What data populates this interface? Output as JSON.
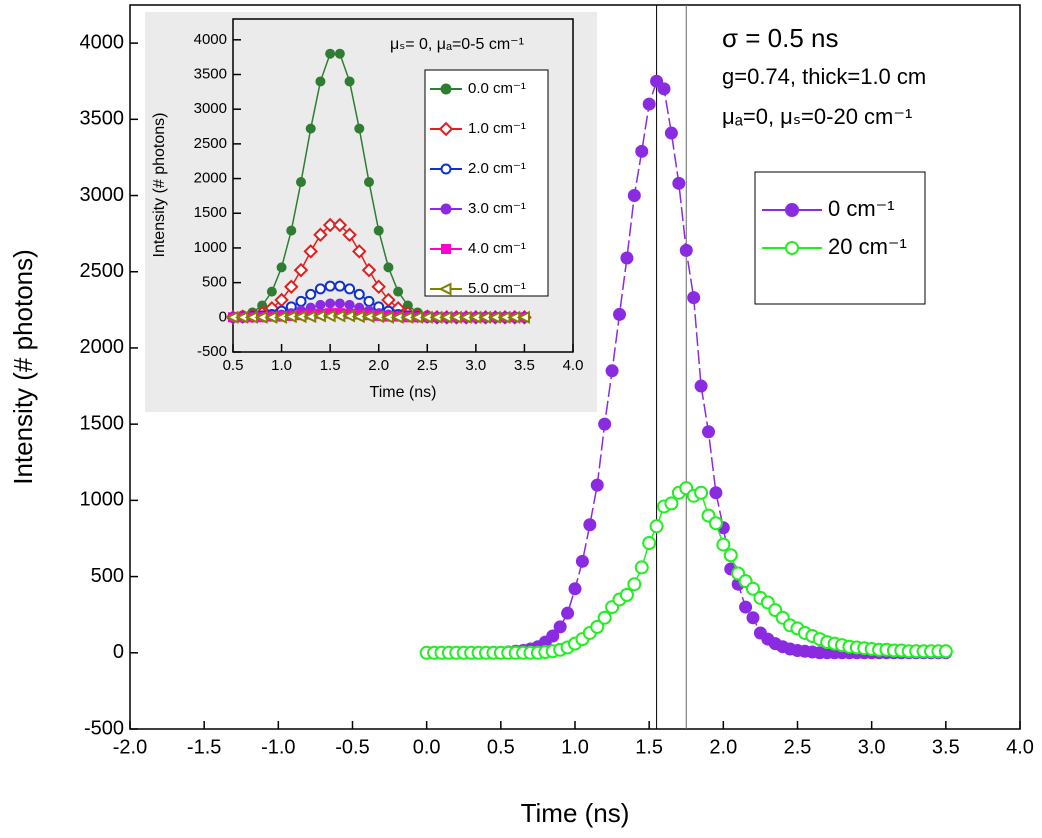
{
  "chart_data": [
    {
      "type": "line",
      "xlabel": "Time (ns)",
      "ylabel": "Intensity (# photons)",
      "xlim": [
        -2,
        4
      ],
      "ylim": [
        -500,
        4250
      ],
      "xticks": [
        {
          "value": -2,
          "label": "-2.0"
        },
        -1.5,
        {
          "value": -1,
          "label": "-1.0"
        },
        -0.5,
        {
          "value": 0,
          "label": "0.0"
        },
        0.5,
        {
          "value": 1,
          "label": "1.0"
        },
        1.5,
        {
          "value": 2,
          "label": "2.0"
        },
        2.5,
        {
          "value": 3,
          "label": "3.0"
        },
        3.5,
        {
          "value": 4,
          "label": "4.0"
        }
      ],
      "yticks": [
        -500,
        0,
        500,
        1000,
        1500,
        2000,
        2500,
        3000,
        3500,
        4000
      ],
      "vlines": [
        1.55,
        1.75
      ],
      "annotations": [
        "σ = 0.5 ns",
        "g=0.74, thick=1.0 cm",
        "μₐ=0, μₛ=0-20 cm⁻¹"
      ],
      "x": [
        0,
        0.05,
        0.1,
        0.15,
        0.2,
        0.25,
        0.3,
        0.35,
        0.4,
        0.45,
        0.5,
        0.55,
        0.6,
        0.65,
        0.7,
        0.75,
        0.8,
        0.85,
        0.9,
        0.95,
        1.0,
        1.05,
        1.1,
        1.15,
        1.2,
        1.25,
        1.3,
        1.35,
        1.4,
        1.45,
        1.5,
        1.55,
        1.6,
        1.65,
        1.7,
        1.75,
        1.8,
        1.85,
        1.9,
        1.95,
        2.0,
        2.05,
        2.1,
        2.15,
        2.2,
        2.25,
        2.3,
        2.35,
        2.4,
        2.45,
        2.5,
        2.55,
        2.6,
        2.65,
        2.7,
        2.75,
        2.8,
        2.85,
        2.9,
        2.95,
        3.0,
        3.05,
        3.1,
        3.15,
        3.2,
        3.25,
        3.3,
        3.35,
        3.4,
        3.45,
        3.5
      ],
      "series": [
        {
          "name": "0 cm⁻¹",
          "color": "#8a2be2",
          "marker": "circle",
          "filled": true,
          "dashed": true,
          "values": [
            0,
            0,
            0,
            0,
            0,
            0,
            0,
            0,
            0,
            0,
            0,
            5,
            10,
            15,
            25,
            40,
            70,
            110,
            170,
            260,
            420,
            600,
            840,
            1100,
            1500,
            1850,
            2220,
            2590,
            3000,
            3290,
            3600,
            3750,
            3700,
            3410,
            3080,
            2640,
            2330,
            1750,
            1450,
            1050,
            820,
            550,
            450,
            300,
            230,
            130,
            90,
            60,
            40,
            25,
            15,
            10,
            5,
            0,
            0,
            0,
            0,
            0,
            0,
            0,
            0,
            0,
            0,
            0,
            0,
            0,
            0,
            0,
            0,
            0,
            0
          ]
        },
        {
          "name": "20 cm⁻¹",
          "color": "#22ee22",
          "marker": "circle",
          "filled": false,
          "dashed": false,
          "values": [
            0,
            0,
            0,
            0,
            0,
            0,
            0,
            0,
            0,
            0,
            0,
            0,
            0,
            0,
            0,
            0,
            5,
            10,
            20,
            35,
            60,
            90,
            130,
            170,
            230,
            300,
            350,
            380,
            450,
            560,
            720,
            830,
            960,
            980,
            1050,
            1080,
            1030,
            1050,
            900,
            850,
            710,
            640,
            520,
            470,
            420,
            360,
            330,
            280,
            230,
            180,
            160,
            130,
            110,
            90,
            70,
            60,
            50,
            40,
            35,
            30,
            25,
            20,
            20,
            15,
            15,
            10,
            10,
            10,
            10,
            10,
            10
          ]
        }
      ]
    },
    {
      "type": "line",
      "title": "μₛ= 0, μₐ=0-5 cm⁻¹",
      "xlabel": "Time (ns)",
      "ylabel": "Intensity (# photons)",
      "xlim": [
        0.5,
        4
      ],
      "ylim": [
        -500,
        4300
      ],
      "xticks": [
        0.5,
        {
          "value": 1,
          "label": "1.0"
        },
        1.5,
        {
          "value": 2,
          "label": "2.0"
        },
        2.5,
        {
          "value": 3,
          "label": "3.0"
        },
        3.5,
        {
          "value": 4,
          "label": "4.0"
        }
      ],
      "yticks": [
        -500,
        0,
        500,
        1000,
        1500,
        2000,
        2500,
        3000,
        3500,
        4000
      ],
      "x": [
        0.5,
        0.6,
        0.7,
        0.8,
        0.9,
        1.0,
        1.1,
        1.2,
        1.3,
        1.4,
        1.5,
        1.6,
        1.7,
        1.8,
        1.9,
        2.0,
        2.1,
        2.2,
        2.3,
        2.4,
        2.5,
        2.6,
        2.7,
        2.8,
        2.9,
        3.0,
        3.1,
        3.2,
        3.3,
        3.4,
        3.5
      ],
      "series": [
        {
          "name": "0.0 cm⁻¹",
          "color": "#2e7d32",
          "marker": "circle",
          "filled": true,
          "values": [
            10,
            30,
            70,
            170,
            370,
            720,
            1250,
            1950,
            2720,
            3400,
            3800,
            3800,
            3400,
            2720,
            1950,
            1250,
            720,
            370,
            170,
            70,
            30,
            10,
            0,
            0,
            0,
            0,
            0,
            0,
            0,
            0,
            0
          ]
        },
        {
          "name": "1.0 cm⁻¹",
          "color": "#e02020",
          "marker": "diamond",
          "filled": false,
          "values": [
            0,
            10,
            20,
            60,
            130,
            250,
            440,
            680,
            950,
            1190,
            1330,
            1330,
            1190,
            950,
            680,
            440,
            250,
            130,
            60,
            20,
            10,
            0,
            0,
            0,
            0,
            0,
            0,
            0,
            0,
            0,
            0
          ]
        },
        {
          "name": "2.0 cm⁻¹",
          "color": "#1030d0",
          "marker": "circle",
          "filled": false,
          "values": [
            0,
            0,
            10,
            20,
            40,
            90,
            150,
            230,
            330,
            410,
            450,
            450,
            410,
            330,
            230,
            150,
            90,
            40,
            20,
            10,
            0,
            0,
            0,
            0,
            0,
            0,
            0,
            0,
            0,
            0,
            0
          ]
        },
        {
          "name": "3.0 cm⁻¹",
          "color": "#8a2be2",
          "marker": "circle",
          "filled": true,
          "values": [
            0,
            0,
            0,
            10,
            20,
            40,
            60,
            100,
            140,
            180,
            200,
            200,
            180,
            140,
            100,
            60,
            40,
            20,
            10,
            0,
            0,
            0,
            0,
            0,
            0,
            0,
            0,
            0,
            0,
            0,
            0
          ]
        },
        {
          "name": "4.0 cm⁻¹",
          "color": "#ff00cc",
          "marker": "square",
          "filled": true,
          "values": [
            0,
            0,
            0,
            0,
            10,
            10,
            20,
            30,
            40,
            50,
            60,
            60,
            50,
            40,
            30,
            20,
            10,
            10,
            0,
            0,
            0,
            0,
            0,
            0,
            0,
            0,
            0,
            0,
            0,
            0,
            0
          ]
        },
        {
          "name": "5.0 cm⁻¹",
          "color": "#808000",
          "marker": "triangle-left",
          "filled": false,
          "values": [
            0,
            0,
            0,
            0,
            0,
            0,
            10,
            10,
            10,
            20,
            20,
            20,
            20,
            10,
            10,
            10,
            0,
            0,
            0,
            0,
            0,
            0,
            0,
            0,
            0,
            0,
            0,
            0,
            0,
            0,
            0
          ]
        }
      ]
    }
  ]
}
